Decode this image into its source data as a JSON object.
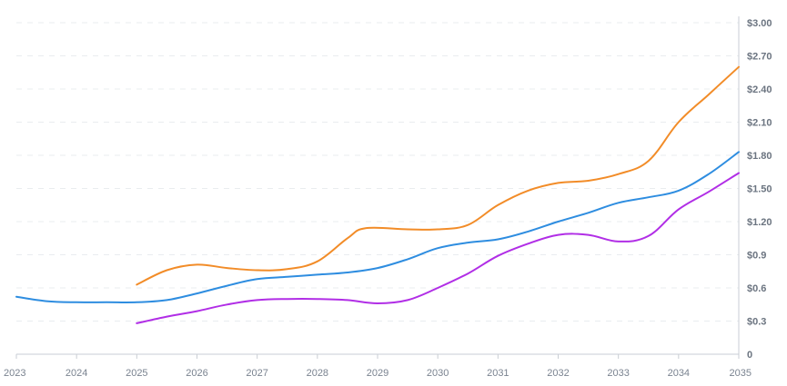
{
  "chart_data": {
    "type": "line",
    "title": "",
    "xlabel": "",
    "ylabel": "",
    "x_ticks": [
      "2023",
      "2024",
      "2025",
      "2026",
      "2027",
      "2028",
      "2029",
      "2030",
      "2031",
      "2032",
      "2033",
      "2034",
      "2035"
    ],
    "y_ticks": [
      "0",
      "$0.3",
      "$0.6",
      "$0.9",
      "$1.20",
      "$1.50",
      "$1.80",
      "$2.10",
      "$2.40",
      "$2.70",
      "$3.00"
    ],
    "ylim": [
      0,
      3.0
    ],
    "xlim": [
      2023,
      2035
    ],
    "grid": true,
    "y_axis_position": "right",
    "series": [
      {
        "color": "#f28c28",
        "x": [
          2025.0,
          2025.5,
          2026.0,
          2026.5,
          2027.0,
          2027.5,
          2028.0,
          2028.5,
          2028.8,
          2029.5,
          2030.0,
          2030.5,
          2031.0,
          2031.5,
          2032.0,
          2032.5,
          2033.0,
          2033.5,
          2034.0,
          2034.5,
          2035.0
        ],
        "values": [
          0.63,
          0.76,
          0.81,
          0.78,
          0.76,
          0.77,
          0.84,
          1.05,
          1.14,
          1.13,
          1.13,
          1.17,
          1.35,
          1.48,
          1.55,
          1.57,
          1.63,
          1.75,
          2.1,
          2.35,
          2.6
        ]
      },
      {
        "color": "#2e8de0",
        "x": [
          2023.0,
          2023.5,
          2024.0,
          2024.5,
          2025.0,
          2025.5,
          2026.0,
          2026.5,
          2027.0,
          2027.5,
          2028.0,
          2028.5,
          2029.0,
          2029.5,
          2030.0,
          2030.5,
          2031.0,
          2031.5,
          2032.0,
          2032.5,
          2033.0,
          2033.5,
          2034.0,
          2034.5,
          2035.0
        ],
        "values": [
          0.52,
          0.48,
          0.47,
          0.47,
          0.47,
          0.49,
          0.55,
          0.62,
          0.68,
          0.7,
          0.72,
          0.74,
          0.78,
          0.86,
          0.96,
          1.01,
          1.04,
          1.11,
          1.2,
          1.28,
          1.37,
          1.42,
          1.48,
          1.63,
          1.83
        ]
      },
      {
        "color": "#b12ee6",
        "x": [
          2025.0,
          2025.5,
          2026.0,
          2026.5,
          2027.0,
          2027.5,
          2028.0,
          2028.5,
          2029.0,
          2029.5,
          2030.0,
          2030.5,
          2031.0,
          2031.5,
          2032.0,
          2032.5,
          2033.0,
          2033.5,
          2034.0,
          2034.5,
          2035.0
        ],
        "values": [
          0.28,
          0.34,
          0.39,
          0.45,
          0.49,
          0.5,
          0.5,
          0.49,
          0.46,
          0.49,
          0.6,
          0.73,
          0.89,
          1.0,
          1.08,
          1.08,
          1.02,
          1.07,
          1.31,
          1.47,
          1.64
        ]
      }
    ]
  }
}
